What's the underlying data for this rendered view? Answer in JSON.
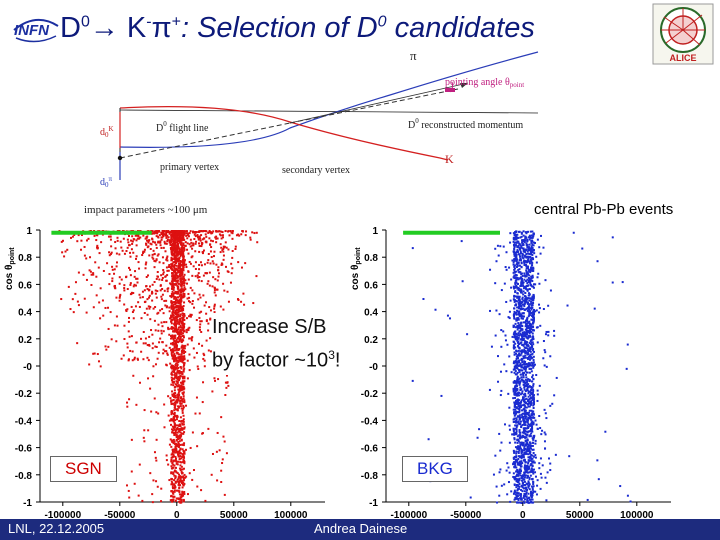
{
  "title": {
    "part1": "D",
    "sup1": "0",
    "arrow": "→ K",
    "sup2": "-",
    "pi": "π",
    "sup3": "+",
    "rest": ": Selection of D",
    "sup4": "0",
    "tail": " candidates"
  },
  "logo": {
    "infn": "INFN",
    "alice": "ALICE"
  },
  "diagram": {
    "pi": "π",
    "pointing_angle": "pointing angle θ",
    "pointing_sub": "point",
    "d0k": "d",
    "d0k_sub": "0",
    "d0k_sup": "K",
    "flight_line": "D",
    "flight_line_sup": "0",
    "flight_line_rest": " flight line",
    "reconstructed": "D",
    "reconstructed_sup": "0",
    "reconstructed_rest": " reconstructed momentum",
    "primary_vertex": "primary vertex",
    "d0pi": "d",
    "d0pi_sub": "0",
    "d0pi_sup": "π",
    "secondary_vertex": "secondary vertex",
    "k": "K",
    "impact": "impact parameters ~100 μm"
  },
  "central_events": "central Pb-Pb events",
  "plots": {
    "ylabel": "cos θ",
    "ylabel_sub": "point",
    "sgn_label": "SGN",
    "bkg_label": "BKG",
    "y_ticks": [
      "1",
      "0.8",
      "0.6",
      "0.4",
      "0.2",
      "-0",
      "-0.2",
      "-0.4",
      "-0.6",
      "-0.8",
      "-1"
    ],
    "x_ticks": [
      "-100000",
      "-50000",
      "0",
      "50000",
      "100000"
    ]
  },
  "annotation": {
    "line1": "Increase S/B",
    "line2": "by factor ~10",
    "line2_sup": "3",
    "line2_end": "!"
  },
  "footer": {
    "left": "LNL, 22.12.2005",
    "center": "Andrea Dainese"
  },
  "chart_data": [
    {
      "type": "scatter",
      "title": "SGN",
      "xlabel": "",
      "ylabel": "cos θpoint",
      "xlim": [
        -120000,
        130000
      ],
      "ylim": [
        -1,
        1
      ],
      "cut_line": {
        "y": 0.98,
        "x_range": [
          -110000,
          -22000
        ]
      },
      "color": "#dd1111"
    },
    {
      "type": "scatter",
      "title": "BKG",
      "xlabel": "",
      "ylabel": "cos θpoint",
      "xlim": [
        -120000,
        130000
      ],
      "ylim": [
        -1,
        1
      ],
      "cut_line": {
        "y": 0.98,
        "x_range": [
          -105000,
          -20000
        ]
      },
      "color": "#1a2bd0"
    }
  ],
  "colors": {
    "title": "#0d1a7a",
    "footer": "#1d2b7e",
    "sgn": "#dd1111",
    "bkg": "#1a2bd0",
    "cut": "#22cc22",
    "track_red": "#d42020"
  }
}
